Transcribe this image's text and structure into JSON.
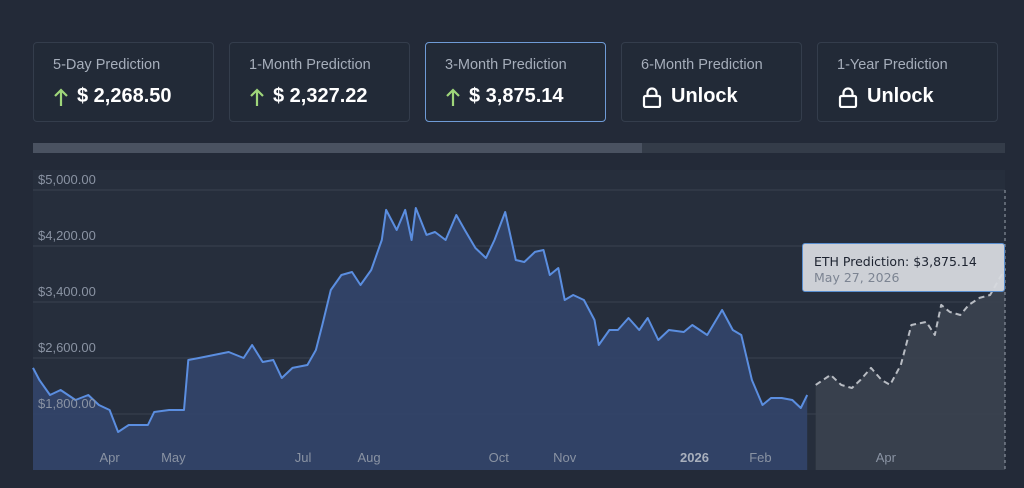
{
  "cards": [
    {
      "title": "5-Day Prediction",
      "value": "$ 2,268.50"
    },
    {
      "title": "1-Month Prediction",
      "value": "$ 2,327.22"
    },
    {
      "title": "3-Month Prediction",
      "value": "$ 3,875.14",
      "selected": true
    },
    {
      "title": "6-Month Prediction",
      "value": "Unlock",
      "locked": true
    },
    {
      "title": "1-Year Prediction",
      "value": "Unlock",
      "locked": true
    }
  ],
  "chart_data": {
    "type": "line",
    "xlim": [
      "2025-02-24",
      "2026-05-27"
    ],
    "ylim": [
      1000,
      5000
    ],
    "yticks": [
      {
        "value": 1800,
        "label": "$1,800.00"
      },
      {
        "value": 2600,
        "label": "$2,600.00"
      },
      {
        "value": 3400,
        "label": "$3,400.00"
      },
      {
        "value": 4200,
        "label": "$4,200.00"
      },
      {
        "value": 5000,
        "label": "$5,000.00"
      }
    ],
    "xticks": [
      {
        "value": "2025-04-01",
        "label": "Apr"
      },
      {
        "value": "2025-05-01",
        "label": "May"
      },
      {
        "value": "2025-07-01",
        "label": "Jul"
      },
      {
        "value": "2025-08-01",
        "label": "Aug"
      },
      {
        "value": "2025-10-01",
        "label": "Oct"
      },
      {
        "value": "2025-11-01",
        "label": "Nov"
      },
      {
        "value": "2026-01-01",
        "label": "2026"
      },
      {
        "value": "2026-02-01",
        "label": "Feb"
      },
      {
        "value": "2026-04-01",
        "label": "Apr"
      }
    ],
    "grid": true,
    "series": [
      {
        "color": "#5b8ee0",
        "dashed": false,
        "x": [
          "2025-02-24",
          "2025-02-27",
          "2025-03-04",
          "2025-03-09",
          "2025-03-16",
          "2025-03-22",
          "2025-03-27",
          "2025-04-01",
          "2025-04-05",
          "2025-04-10",
          "2025-04-19",
          "2025-04-22",
          "2025-04-29",
          "2025-05-06",
          "2025-05-08",
          "2025-05-13",
          "2025-05-20",
          "2025-05-27",
          "2025-06-03",
          "2025-06-07",
          "2025-06-12",
          "2025-06-17",
          "2025-06-21",
          "2025-06-26",
          "2025-07-03",
          "2025-07-07",
          "2025-07-10",
          "2025-07-14",
          "2025-07-19",
          "2025-07-24",
          "2025-07-28",
          "2025-08-02",
          "2025-08-07",
          "2025-08-09",
          "2025-08-14",
          "2025-08-18",
          "2025-08-21",
          "2025-08-23",
          "2025-08-28",
          "2025-09-01",
          "2025-09-06",
          "2025-09-11",
          "2025-09-15",
          "2025-09-20",
          "2025-09-25",
          "2025-09-29",
          "2025-10-04",
          "2025-10-09",
          "2025-10-13",
          "2025-10-18",
          "2025-10-22",
          "2025-10-25",
          "2025-10-29",
          "2025-11-01",
          "2025-11-05",
          "2025-11-10",
          "2025-11-15",
          "2025-11-17",
          "2025-11-22",
          "2025-11-26",
          "2025-12-01",
          "2025-12-06",
          "2025-12-10",
          "2025-12-15",
          "2025-12-20",
          "2025-12-27",
          "2025-12-31",
          "2026-01-07",
          "2026-01-14",
          "2026-01-19",
          "2026-01-23",
          "2026-01-28",
          "2026-02-02",
          "2026-02-06",
          "2026-02-11",
          "2026-02-16",
          "2026-02-20",
          "2026-02-23"
        ],
        "values": [
          2458,
          2286,
          2071,
          2143,
          2000,
          2071,
          1929,
          1857,
          1543,
          1643,
          1643,
          1829,
          1857,
          1857,
          2572,
          2600,
          2643,
          2686,
          2600,
          2786,
          2543,
          2572,
          2314,
          2458,
          2500,
          2714,
          3072,
          3572,
          3786,
          3829,
          3643,
          3857,
          4286,
          4715,
          4429,
          4715,
          4286,
          4743,
          4358,
          4400,
          4286,
          4643,
          4429,
          4172,
          4029,
          4286,
          4686,
          4000,
          3972,
          4115,
          4143,
          3786,
          3886,
          3429,
          3500,
          3429,
          3143,
          2786,
          3000,
          3000,
          3172,
          3000,
          3172,
          2857,
          3000,
          2972,
          3072,
          2929,
          3286,
          3000,
          2929,
          2286,
          1929,
          2029,
          2029,
          2000,
          1886,
          2071
        ]
      },
      {
        "color": "#b8bcc3",
        "dashed": true,
        "x": [
          "2026-02-27",
          "2026-03-06",
          "2026-03-11",
          "2026-03-16",
          "2026-03-20",
          "2026-03-25",
          "2026-03-30",
          "2026-04-03",
          "2026-04-08",
          "2026-04-13",
          "2026-04-20",
          "2026-04-24",
          "2026-04-27",
          "2026-05-01",
          "2026-05-06",
          "2026-05-10",
          "2026-05-15",
          "2026-05-20",
          "2026-05-27"
        ],
        "values": [
          2215,
          2358,
          2215,
          2172,
          2286,
          2458,
          2286,
          2215,
          2500,
          3072,
          3115,
          2929,
          3358,
          3258,
          3215,
          3358,
          3458,
          3500,
          3875.14
        ]
      }
    ],
    "tooltip": {
      "text": "ETH Prediction: $3,875.14",
      "date": "May 27, 2026"
    }
  }
}
